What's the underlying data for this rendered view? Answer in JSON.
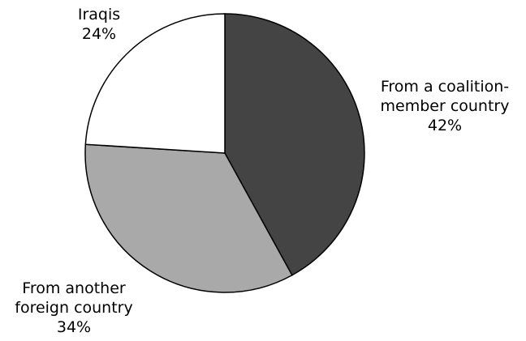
{
  "chart_data": {
    "type": "pie",
    "title": "",
    "start_angle_deg": 0,
    "direction": "clockwise",
    "stroke_color": "#000000",
    "slices": [
      {
        "id": "coalition",
        "label_lines": [
          "From a coalition-",
          "member country",
          "42%"
        ],
        "value": 42,
        "color": "#444444"
      },
      {
        "id": "foreign",
        "label_lines": [
          "From another",
          "foreign country",
          "34%"
        ],
        "value": 34,
        "color": "#a9a9a9"
      },
      {
        "id": "iraqis",
        "label_lines": [
          "Iraqis",
          "24%"
        ],
        "value": 24,
        "color": "#ffffff"
      }
    ]
  }
}
